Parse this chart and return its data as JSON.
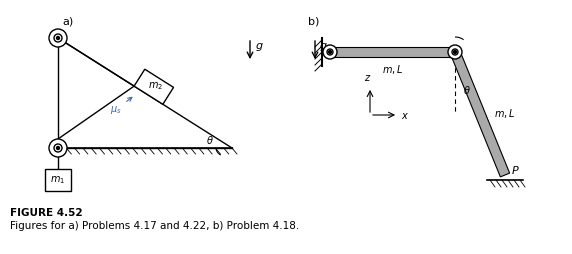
{
  "fig_label_a": "a)",
  "fig_label_b": "b)",
  "caption_bold": "FIGURE 4.52",
  "caption_normal": "Figures for a) Problems 4.17 and 4.22, b) Problem 4.18.",
  "text_color": "#000000",
  "blue_color": "#4169aa",
  "bar_color": "#aaaaaa",
  "bg_color": "#ffffff",
  "lw": 1.0
}
